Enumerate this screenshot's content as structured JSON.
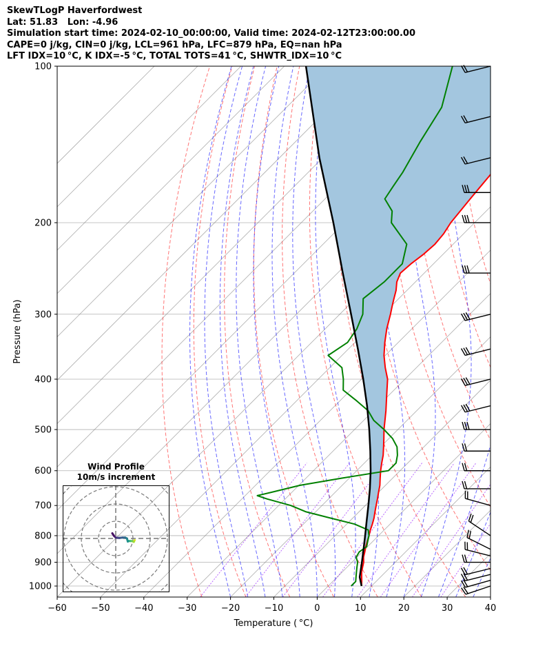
{
  "header": {
    "line1": "SkewTLogP Haverfordwest",
    "line2": "Lat: 51.83   Lon: -4.96",
    "line3": "Simulation start time: 2024-02-10_00:00:00, Valid time: 2024-02-12T23:00:00.00",
    "line4": "CAPE=0 j/kg, CIN=0 j/kg, LCL=961 hPa, LFC=879 hPa, EQ=nan hPa",
    "line5": "LFT IDX=10 °C, K IDX=-5 °C, TOTAL TOTS=41 °C, SHWTR_IDX=10 °C"
  },
  "chart_data": {
    "type": "line",
    "subtype": "skew-T log-P diagram",
    "xlabel": "Temperature ( °C)",
    "ylabel": "Pressure (hPa)",
    "xlim": [
      -60,
      40
    ],
    "ylim": [
      1050,
      100
    ],
    "y_scale": "log",
    "skew_degrees": 45,
    "x_ticks": [
      -60,
      -50,
      -40,
      -30,
      -20,
      -10,
      0,
      10,
      20,
      30,
      40
    ],
    "x_tick_labels": [
      "−60",
      "−50",
      "−40",
      "−30",
      "−20",
      "−10",
      "0",
      "10",
      "20",
      "30",
      "40"
    ],
    "y_ticks": [
      1000,
      900,
      800,
      700,
      600,
      500,
      400,
      300,
      200,
      100
    ],
    "grid": true,
    "colors": {
      "temperature": "#ff0000",
      "dewpoint": "#008000",
      "parcel": "#000000",
      "cape_fill": "#a3c6df",
      "dry_adiabats": "#ff0000",
      "moist_adiabats": "#0000ff",
      "mixing_ratio": "#8b00ff",
      "isotherms": "#808080"
    },
    "series": [
      {
        "key": "temperature",
        "p": [
          1000,
          980,
          960,
          940,
          920,
          900,
          880,
          860,
          840,
          820,
          800,
          780,
          760,
          740,
          720,
          700,
          680,
          660,
          640,
          620,
          600,
          580,
          560,
          540,
          520,
          500,
          480,
          460,
          440,
          420,
          400,
          380,
          360,
          340,
          320,
          300,
          290,
          280,
          270,
          260,
          250,
          240,
          230,
          220,
          210,
          200,
          190,
          180,
          170,
          160,
          150,
          140,
          130,
          120,
          110,
          100
        ],
        "t": [
          7.7,
          6.7,
          5.6,
          4.5,
          3.6,
          2.7,
          1.5,
          0.6,
          -0.4,
          -1.3,
          -2.2,
          -3.2,
          -4.1,
          -5.1,
          -6.3,
          -7.5,
          -8.7,
          -10.0,
          -11.3,
          -12.9,
          -14.5,
          -16.0,
          -17.5,
          -19.3,
          -21.2,
          -23.2,
          -25.1,
          -27.1,
          -29.3,
          -31.6,
          -34.0,
          -37.2,
          -40.3,
          -43.1,
          -45.8,
          -48.3,
          -49.7,
          -51.1,
          -52.5,
          -54.3,
          -55.5,
          -55.2,
          -54.5,
          -54.2,
          -54.6,
          -55.5,
          -56.0,
          -56.5,
          -57.0,
          -57.5,
          -58.0,
          -58.5,
          -59.0,
          -59.8,
          -61.5,
          -64.0
        ]
      },
      {
        "key": "dewpoint",
        "p": [
          1000,
          980,
          960,
          940,
          920,
          900,
          880,
          860,
          840,
          820,
          800,
          780,
          760,
          740,
          720,
          700,
          680,
          670,
          660,
          640,
          620,
          600,
          580,
          560,
          540,
          520,
          500,
          480,
          460,
          440,
          420,
          400,
          380,
          360,
          340,
          320,
          300,
          280,
          260,
          240,
          220,
          200,
          190,
          180,
          170,
          160,
          140,
          120,
          100
        ],
        "t": [
          5.3,
          5.3,
          4.3,
          3.3,
          2.3,
          1.3,
          -0.2,
          -0.7,
          -0.2,
          -1.2,
          -2.2,
          -3.7,
          -8.2,
          -15.2,
          -22.2,
          -27.2,
          -34.2,
          -37.2,
          -34.7,
          -29.7,
          -21.7,
          -12.7,
          -12.7,
          -14.2,
          -16.2,
          -19.2,
          -23.2,
          -27.7,
          -31.2,
          -36.2,
          -41.7,
          -44.2,
          -47.2,
          -53.2,
          -51.7,
          -52.7,
          -54.7,
          -58.2,
          -57.2,
          -57.2,
          -60.7,
          -69.2,
          -71.7,
          -76.2,
          -77.2,
          -78.2,
          -81.2,
          -84.2,
          -91.2
        ]
      },
      {
        "key": "parcel",
        "p": [
          1000,
          961,
          900,
          850,
          800,
          750,
          700,
          650,
          600,
          550,
          500,
          450,
          400,
          350,
          300,
          250,
          200,
          150,
          100
        ],
        "t": [
          7.7,
          5.2,
          2.3,
          -0.3,
          -3.1,
          -6.1,
          -9.3,
          -12.8,
          -16.8,
          -21.4,
          -26.6,
          -32.6,
          -39.6,
          -47.8,
          -57.4,
          -68.8,
          -82.6,
          -100.8,
          -125.0
        ]
      }
    ],
    "wind_barbs": {
      "p": [
        1000,
        975,
        950,
        925,
        900,
        875,
        850,
        800,
        700,
        650,
        600,
        550,
        500,
        450,
        400,
        350,
        300,
        250,
        200,
        175,
        150,
        125,
        100
      ],
      "u_kt": [
        -15,
        -18,
        -20,
        -20,
        -20,
        -20,
        -20,
        -15,
        -18,
        -20,
        -20,
        -20,
        -20,
        -20,
        -20,
        -20,
        -20,
        -20,
        -20,
        -20,
        -20,
        -20,
        -20
      ],
      "v_kt": [
        -5,
        -5,
        -5,
        -5,
        0,
        5,
        10,
        10,
        5,
        0,
        0,
        0,
        0,
        -5,
        -5,
        -5,
        -5,
        0,
        0,
        0,
        -5,
        -5,
        -5
      ],
      "barb_flags": [
        2,
        2,
        2,
        2,
        2,
        2,
        2,
        2,
        2,
        2,
        2,
        2,
        3,
        3,
        3,
        3,
        3,
        3,
        3,
        3,
        2,
        2,
        2
      ]
    },
    "hodograph": {
      "title": "Wind Profile",
      "subtitle": "10m/s increment",
      "ring_step_ms": 10,
      "rings": 3,
      "u_ms": [
        11,
        10.5,
        9.5,
        8.5,
        7.5,
        7,
        6.5,
        5.5,
        4,
        2,
        0,
        -1,
        -2
      ],
      "v_ms": [
        -1,
        -2,
        -1.5,
        -1.5,
        -1.5,
        -1.8,
        0,
        0.5,
        0.5,
        0.3,
        0.5,
        1.5,
        3
      ]
    }
  }
}
